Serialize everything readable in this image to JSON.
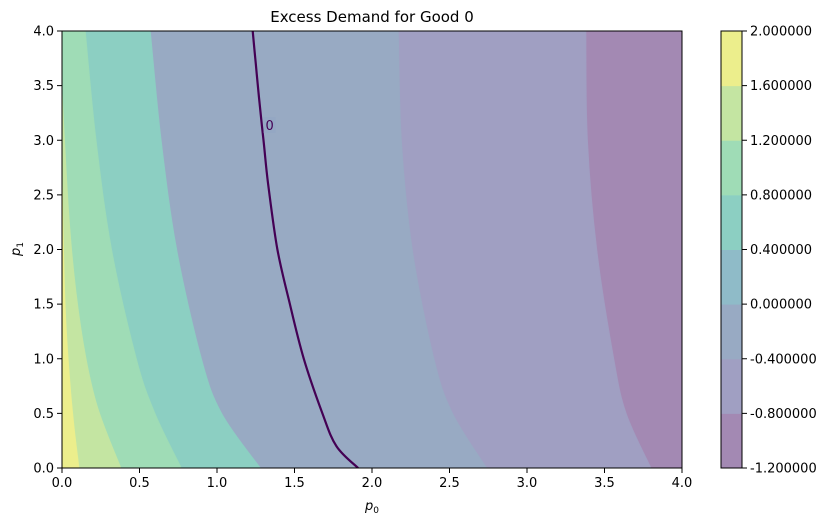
{
  "chart_data": {
    "type": "contour",
    "title": "Excess Demand for Good 0",
    "xlabel": "p",
    "xlabel_sub": "0",
    "ylabel": "p",
    "ylabel_sub": "1",
    "xlim": [
      0.0,
      4.0
    ],
    "ylim": [
      0.0,
      4.0
    ],
    "xticks": [
      "0.0",
      "0.5",
      "1.0",
      "1.5",
      "2.0",
      "2.5",
      "3.0",
      "3.5",
      "4.0"
    ],
    "yticks": [
      "0.0",
      "0.5",
      "1.0",
      "1.5",
      "2.0",
      "2.5",
      "3.0",
      "3.5",
      "4.0"
    ],
    "contour_levels": [
      -1.2,
      -0.8,
      -0.4,
      0.0,
      0.4,
      0.8,
      1.2,
      1.6,
      2.0
    ],
    "colorbar_ticks": [
      "-1.200000",
      "-0.800000",
      "-0.400000",
      "0.000000",
      "0.400000",
      "0.800000",
      "1.200000",
      "1.600000",
      "2.000000"
    ],
    "band_colors": [
      "#a389b3",
      "#a09fc2",
      "#98aac3",
      "#8fbbc8",
      "#8ccfc2",
      "#9fdcb6",
      "#c4e5a2",
      "#ecee8c"
    ],
    "boundaries": [
      {
        "level": 1.6,
        "points": [
          [
            0.0,
            2.65
          ],
          [
            0.02,
            1.5
          ],
          [
            0.05,
            0.8
          ],
          [
            0.08,
            0.35
          ],
          [
            0.11,
            0.0
          ]
        ]
      },
      {
        "level": 1.2,
        "points": [
          [
            0.0,
            3.45
          ],
          [
            0.05,
            2.2
          ],
          [
            0.12,
            1.3
          ],
          [
            0.22,
            0.6
          ],
          [
            0.38,
            0.0
          ]
        ]
      },
      {
        "level": 0.8,
        "points": [
          [
            0.15,
            4.0
          ],
          [
            0.22,
            3.0
          ],
          [
            0.32,
            2.0
          ],
          [
            0.48,
            1.0
          ],
          [
            0.6,
            0.5
          ],
          [
            0.77,
            0.0
          ]
        ]
      },
      {
        "level": 0.4,
        "points": [
          [
            0.57,
            4.0
          ],
          [
            0.64,
            3.0
          ],
          [
            0.74,
            2.0
          ],
          [
            0.9,
            1.0
          ],
          [
            1.03,
            0.5
          ],
          [
            1.28,
            0.0
          ]
        ]
      },
      {
        "level": -0.4,
        "points": [
          [
            2.17,
            4.0
          ],
          [
            2.19,
            3.0
          ],
          [
            2.26,
            2.0
          ],
          [
            2.4,
            1.0
          ],
          [
            2.52,
            0.5
          ],
          [
            2.74,
            0.0
          ]
        ]
      },
      {
        "level": -0.8,
        "points": [
          [
            3.38,
            4.0
          ],
          [
            3.39,
            3.0
          ],
          [
            3.45,
            2.0
          ],
          [
            3.56,
            1.0
          ],
          [
            3.64,
            0.5
          ],
          [
            3.8,
            0.0
          ]
        ]
      }
    ],
    "zero_line": {
      "points": [
        [
          1.23,
          4.0
        ],
        [
          1.25,
          3.7
        ],
        [
          1.27,
          3.4
        ],
        [
          1.3,
          3.0
        ],
        [
          1.33,
          2.6
        ],
        [
          1.39,
          2.0
        ],
        [
          1.47,
          1.5
        ],
        [
          1.56,
          1.0
        ],
        [
          1.68,
          0.5
        ],
        [
          1.77,
          0.2
        ],
        [
          1.91,
          0.0
        ]
      ],
      "color": "#440154"
    },
    "zero_label": {
      "text": "0",
      "x": 1.34,
      "y": 3.14
    }
  }
}
